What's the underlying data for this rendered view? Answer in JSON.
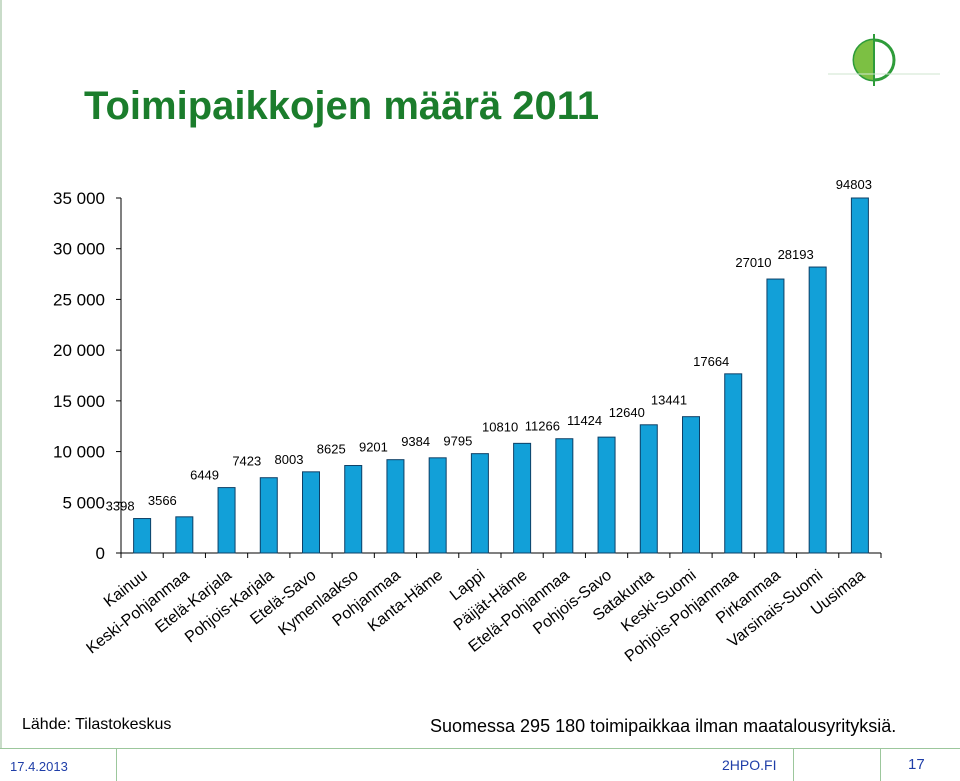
{
  "slide": {
    "title": "Toimipaikkojen määrä 2011",
    "source": "Lähde: Tilastokeskus",
    "note": "Suomessa 295 180 toimipaikkaa ilman maatalousyrityksiä.",
    "date": "17.4.2013",
    "site": "2HPO.FI",
    "page": "17"
  },
  "colors": {
    "bar": "#12a0d8",
    "bar_stroke": "#0d3f66",
    "title": "#1b7d2c",
    "footer": "#1f3ea8"
  },
  "chart_data": {
    "type": "bar",
    "title": "Toimipaikkojen määrä 2011",
    "categories": [
      "Kainuu",
      "Keski-Pohjanmaa",
      "Etelä-Karjala",
      "Pohjois-Karjala",
      "Etelä-Savo",
      "Kymenlaakso",
      "Pohjanmaa",
      "Kanta-Häme",
      "Lappi",
      "Päijät-Häme",
      "Etelä-Pohjanmaa",
      "Pohjois-Savo",
      "Satakunta",
      "Keski-Suomi",
      "Pohjois-Pohjanmaa",
      "Pirkanmaa",
      "Varsinais-Suomi",
      "Uusimaa"
    ],
    "values": [
      3398,
      3566,
      6449,
      7423,
      8003,
      8625,
      9201,
      9384,
      9795,
      10810,
      11266,
      11424,
      12640,
      13441,
      17664,
      27010,
      28193,
      94803
    ],
    "value_labels": [
      "3398",
      "3566",
      "6449",
      "7423",
      "8003",
      "8625",
      "9201",
      "9384",
      "9795",
      "10810",
      "11266",
      "11424",
      "12640",
      "13441",
      "17664",
      "27010",
      "28193",
      "94803"
    ],
    "ylim": [
      0,
      35000
    ],
    "yticks": [
      0,
      5000,
      10000,
      15000,
      20000,
      25000,
      30000,
      35000
    ],
    "ytick_labels": [
      "0",
      "5 000",
      "10 000",
      "15 000",
      "20 000",
      "25 000",
      "30 000",
      "35 000"
    ],
    "grid": false,
    "legend": "none",
    "xlabel": "",
    "ylabel": ""
  }
}
